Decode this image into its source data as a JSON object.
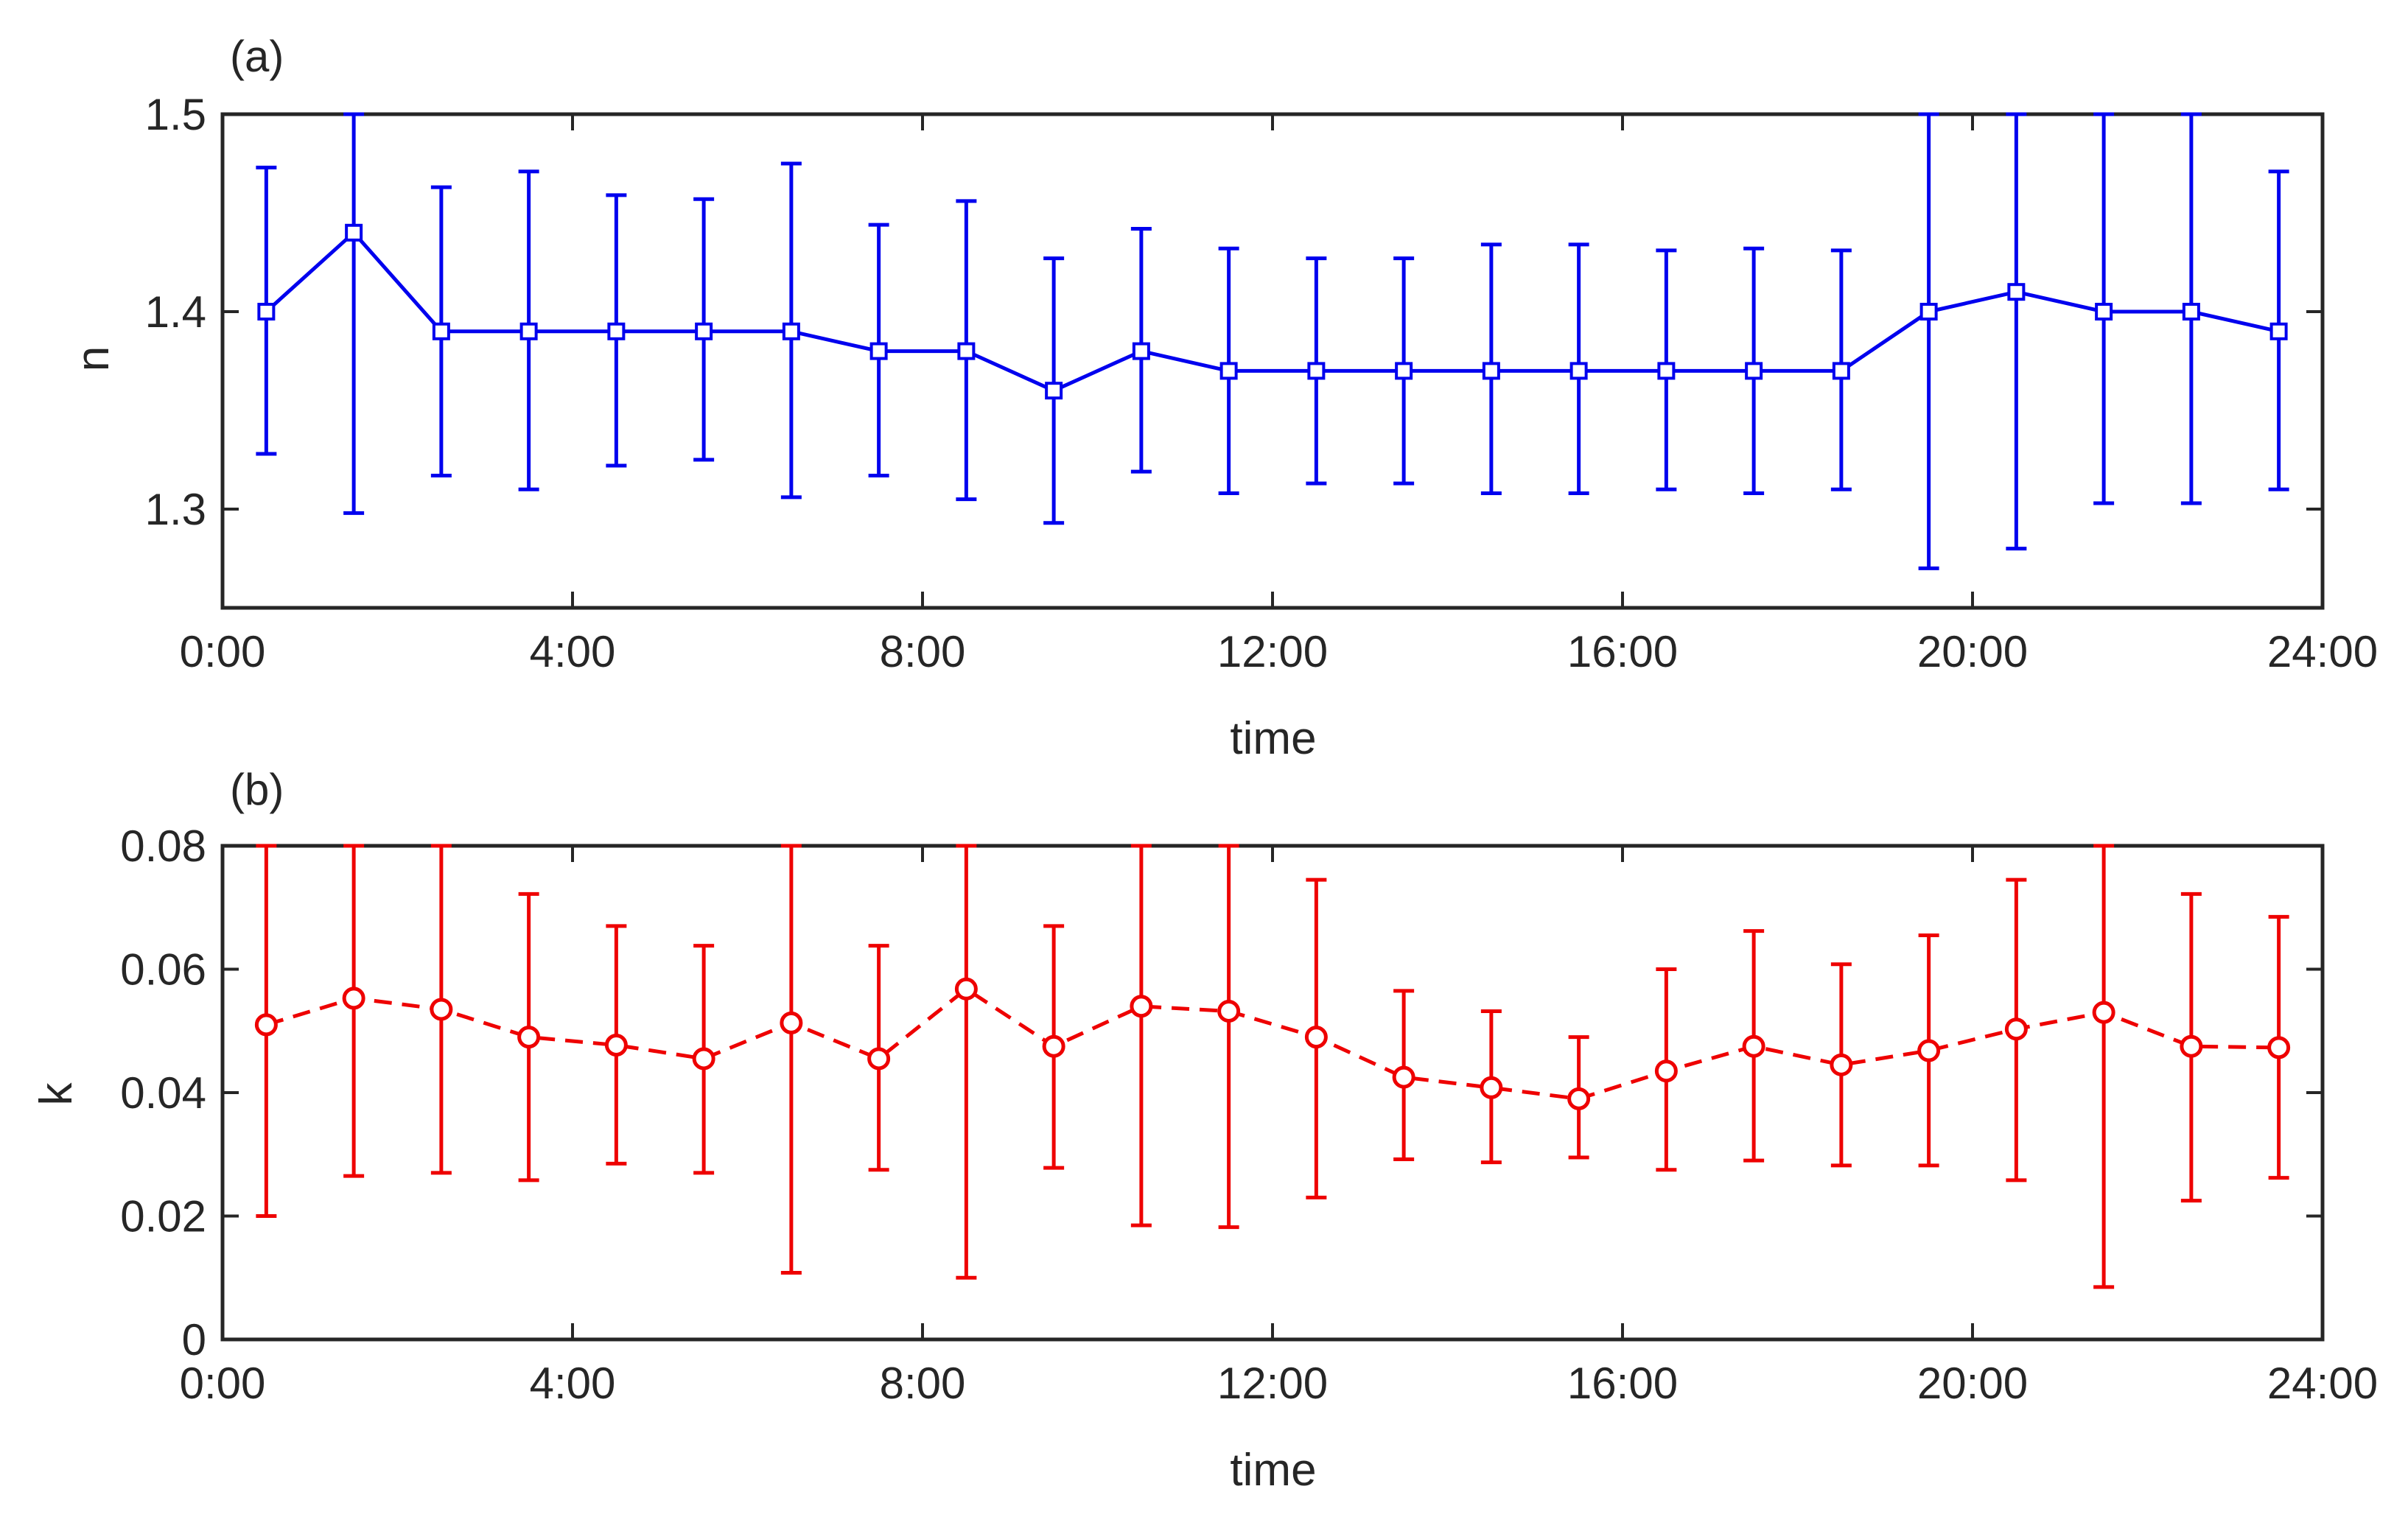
{
  "chart_data": [
    {
      "panel_label": "(a)",
      "type": "line",
      "xlabel": "time",
      "ylabel": "n",
      "xlim": [
        0,
        24
      ],
      "ylim": [
        1.25,
        1.5
      ],
      "xticks": [
        0,
        4,
        8,
        12,
        16,
        20,
        24
      ],
      "xtick_labels": [
        "0:00",
        "4:00",
        "8:00",
        "12:00",
        "16:00",
        "20:00",
        "24:00"
      ],
      "yticks": [
        1.3,
        1.4,
        1.5
      ],
      "ytick_labels": [
        "1.3",
        "1.4",
        "1.5"
      ],
      "grid": false,
      "series": [
        {
          "name": "n",
          "color": "#0000ee",
          "line_style": "solid",
          "marker": "square",
          "x": [
            0.5,
            1.5,
            2.5,
            3.5,
            4.5,
            5.5,
            6.5,
            7.5,
            8.5,
            9.5,
            10.5,
            11.5,
            12.5,
            13.5,
            14.5,
            15.5,
            16.5,
            17.5,
            18.5,
            19.5,
            20.5,
            21.5,
            22.5,
            23.5
          ],
          "values": [
            1.4,
            1.44,
            1.39,
            1.39,
            1.39,
            1.39,
            1.39,
            1.38,
            1.38,
            1.36,
            1.38,
            1.37,
            1.37,
            1.37,
            1.37,
            1.37,
            1.37,
            1.37,
            1.37,
            1.4,
            1.41,
            1.4,
            1.4,
            1.39
          ],
          "err_low": [
            1.328,
            1.298,
            1.317,
            1.31,
            1.322,
            1.325,
            1.306,
            1.317,
            1.305,
            1.293,
            1.319,
            1.308,
            1.313,
            1.313,
            1.308,
            1.308,
            1.31,
            1.308,
            1.31,
            1.27,
            1.28,
            1.303,
            1.303,
            1.31
          ],
          "err_high": [
            1.473,
            1.5,
            1.463,
            1.471,
            1.459,
            1.457,
            1.475,
            1.444,
            1.456,
            1.427,
            1.442,
            1.432,
            1.427,
            1.427,
            1.434,
            1.434,
            1.431,
            1.432,
            1.431,
            1.5,
            1.5,
            1.5,
            1.5,
            1.471
          ]
        }
      ]
    },
    {
      "panel_label": "(b)",
      "type": "line",
      "xlabel": "time",
      "ylabel": "k",
      "xlim": [
        0,
        24
      ],
      "ylim": [
        0,
        0.08
      ],
      "xticks": [
        0,
        4,
        8,
        12,
        16,
        20,
        24
      ],
      "xtick_labels": [
        "0:00",
        "4:00",
        "8:00",
        "12:00",
        "16:00",
        "20:00",
        "24:00"
      ],
      "yticks": [
        0,
        0.02,
        0.04,
        0.06,
        0.08
      ],
      "ytick_labels": [
        "0",
        "0.02",
        "0.04",
        "0.06",
        "0.08"
      ],
      "grid": false,
      "series": [
        {
          "name": "k",
          "color": "#ee0000",
          "line_style": "dashed",
          "marker": "circle",
          "x": [
            0.5,
            1.5,
            2.5,
            3.5,
            4.5,
            5.5,
            6.5,
            7.5,
            8.5,
            9.5,
            10.5,
            11.5,
            12.5,
            13.5,
            14.5,
            15.5,
            16.5,
            17.5,
            18.5,
            19.5,
            20.5,
            21.5,
            22.5,
            23.5
          ],
          "values": [
            0.051,
            0.0553,
            0.0535,
            0.049,
            0.0477,
            0.0455,
            0.0513,
            0.0455,
            0.0568,
            0.0475,
            0.054,
            0.0532,
            0.049,
            0.0425,
            0.0408,
            0.039,
            0.0435,
            0.0475,
            0.0445,
            0.0468,
            0.0503,
            0.053,
            0.0475,
            0.0473
          ],
          "err_low": [
            0.02,
            0.0265,
            0.027,
            0.0258,
            0.0285,
            0.027,
            0.0108,
            0.0275,
            0.01,
            0.0278,
            0.0185,
            0.0182,
            0.023,
            0.0292,
            0.0287,
            0.0295,
            0.0275,
            0.029,
            0.0282,
            0.0282,
            0.0258,
            0.0085,
            0.0225,
            0.0262
          ],
          "err_high": [
            0.08,
            0.08,
            0.08,
            0.0722,
            0.067,
            0.0638,
            0.08,
            0.0638,
            0.08,
            0.067,
            0.08,
            0.08,
            0.0745,
            0.0565,
            0.0532,
            0.049,
            0.06,
            0.0662,
            0.0608,
            0.0655,
            0.0745,
            0.08,
            0.0722,
            0.0685
          ]
        }
      ]
    }
  ]
}
